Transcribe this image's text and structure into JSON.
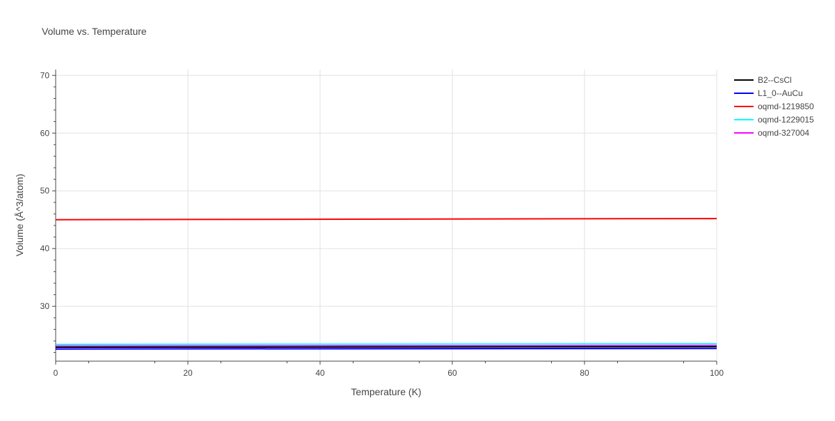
{
  "chart_data": {
    "type": "line",
    "title": "Volume vs. Temperature",
    "xlabel": "Temperature (K)",
    "ylabel": "Volume (Å^3/atom)",
    "xlim": [
      0,
      100
    ],
    "ylim": [
      20.5,
      71
    ],
    "x_ticks": [
      0,
      20,
      40,
      60,
      80,
      100
    ],
    "y_ticks": [
      30,
      40,
      50,
      60,
      70
    ],
    "grid": true,
    "legend_position": "top-right",
    "series": [
      {
        "name": "B2--CsCl",
        "color": "#000000",
        "x": [
          0,
          100
        ],
        "y": [
          22.9,
          23.0
        ]
      },
      {
        "name": "L1_0--AuCu",
        "color": "#0000ff",
        "x": [
          0,
          100
        ],
        "y": [
          22.6,
          22.7
        ]
      },
      {
        "name": "oqmd-1219850",
        "color": "#ff0000",
        "x": [
          0,
          100
        ],
        "y": [
          45.0,
          45.2
        ]
      },
      {
        "name": "oqmd-1229015",
        "color": "#00ffff",
        "x": [
          0,
          100
        ],
        "y": [
          23.4,
          23.5
        ]
      },
      {
        "name": "oqmd-327004",
        "color": "#ff00ff",
        "x": [
          0,
          100
        ],
        "y": [
          23.1,
          23.2
        ]
      }
    ]
  }
}
